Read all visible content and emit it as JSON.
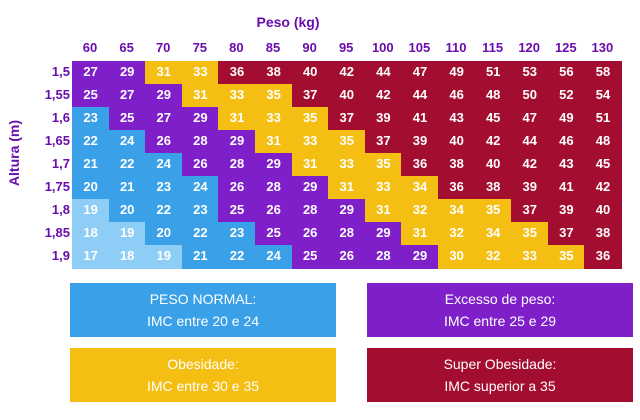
{
  "chart_data": {
    "type": "heatmap",
    "title": "Peso (kg)",
    "xlabel": "Peso (kg)",
    "ylabel": "Altura (m)",
    "x": [
      "60",
      "65",
      "70",
      "75",
      "80",
      "85",
      "90",
      "95",
      "100",
      "105",
      "110",
      "115",
      "120",
      "125",
      "130"
    ],
    "y": [
      "1,5",
      "1,55",
      "1,6",
      "1,65",
      "1,7",
      "1,75",
      "1,8",
      "1,85",
      "1,9"
    ],
    "values": [
      [
        27,
        29,
        31,
        33,
        36,
        38,
        40,
        42,
        44,
        47,
        49,
        51,
        53,
        56,
        58
      ],
      [
        25,
        27,
        29,
        31,
        33,
        35,
        37,
        40,
        42,
        44,
        46,
        48,
        50,
        52,
        54
      ],
      [
        23,
        25,
        27,
        29,
        31,
        33,
        35,
        37,
        39,
        41,
        43,
        45,
        47,
        49,
        51
      ],
      [
        22,
        24,
        26,
        28,
        29,
        31,
        33,
        35,
        37,
        39,
        40,
        42,
        44,
        46,
        48
      ],
      [
        21,
        22,
        24,
        26,
        28,
        29,
        31,
        33,
        35,
        36,
        38,
        40,
        42,
        43,
        45
      ],
      [
        20,
        21,
        23,
        24,
        26,
        28,
        29,
        31,
        33,
        34,
        36,
        38,
        39,
        41,
        42
      ],
      [
        19,
        20,
        22,
        23,
        25,
        26,
        28,
        29,
        31,
        32,
        34,
        35,
        37,
        39,
        40
      ],
      [
        18,
        19,
        20,
        22,
        23,
        25,
        26,
        28,
        29,
        31,
        32,
        34,
        35,
        37,
        38
      ],
      [
        17,
        18,
        19,
        21,
        22,
        24,
        25,
        26,
        28,
        29,
        30,
        32,
        33,
        35,
        36
      ]
    ],
    "categories_colors": {
      "normal": "#3aa0e8",
      "excess": "#7f1fc9",
      "obese": "#f5be12",
      "super": "#a30d2f",
      "under": "#8ecdf5"
    }
  },
  "legend": {
    "normal": {
      "line1": "PESO NORMAL:",
      "line2": "IMC entre 20 e 24"
    },
    "excess": {
      "line1": "Excesso de peso:",
      "line2": "IMC entre 25 e 29"
    },
    "obese": {
      "line1": "Obesidade:",
      "line2": "IMC entre 30 e 35"
    },
    "super": {
      "line1": "Super Obesidade:",
      "line2": "IMC superior a 35"
    }
  }
}
